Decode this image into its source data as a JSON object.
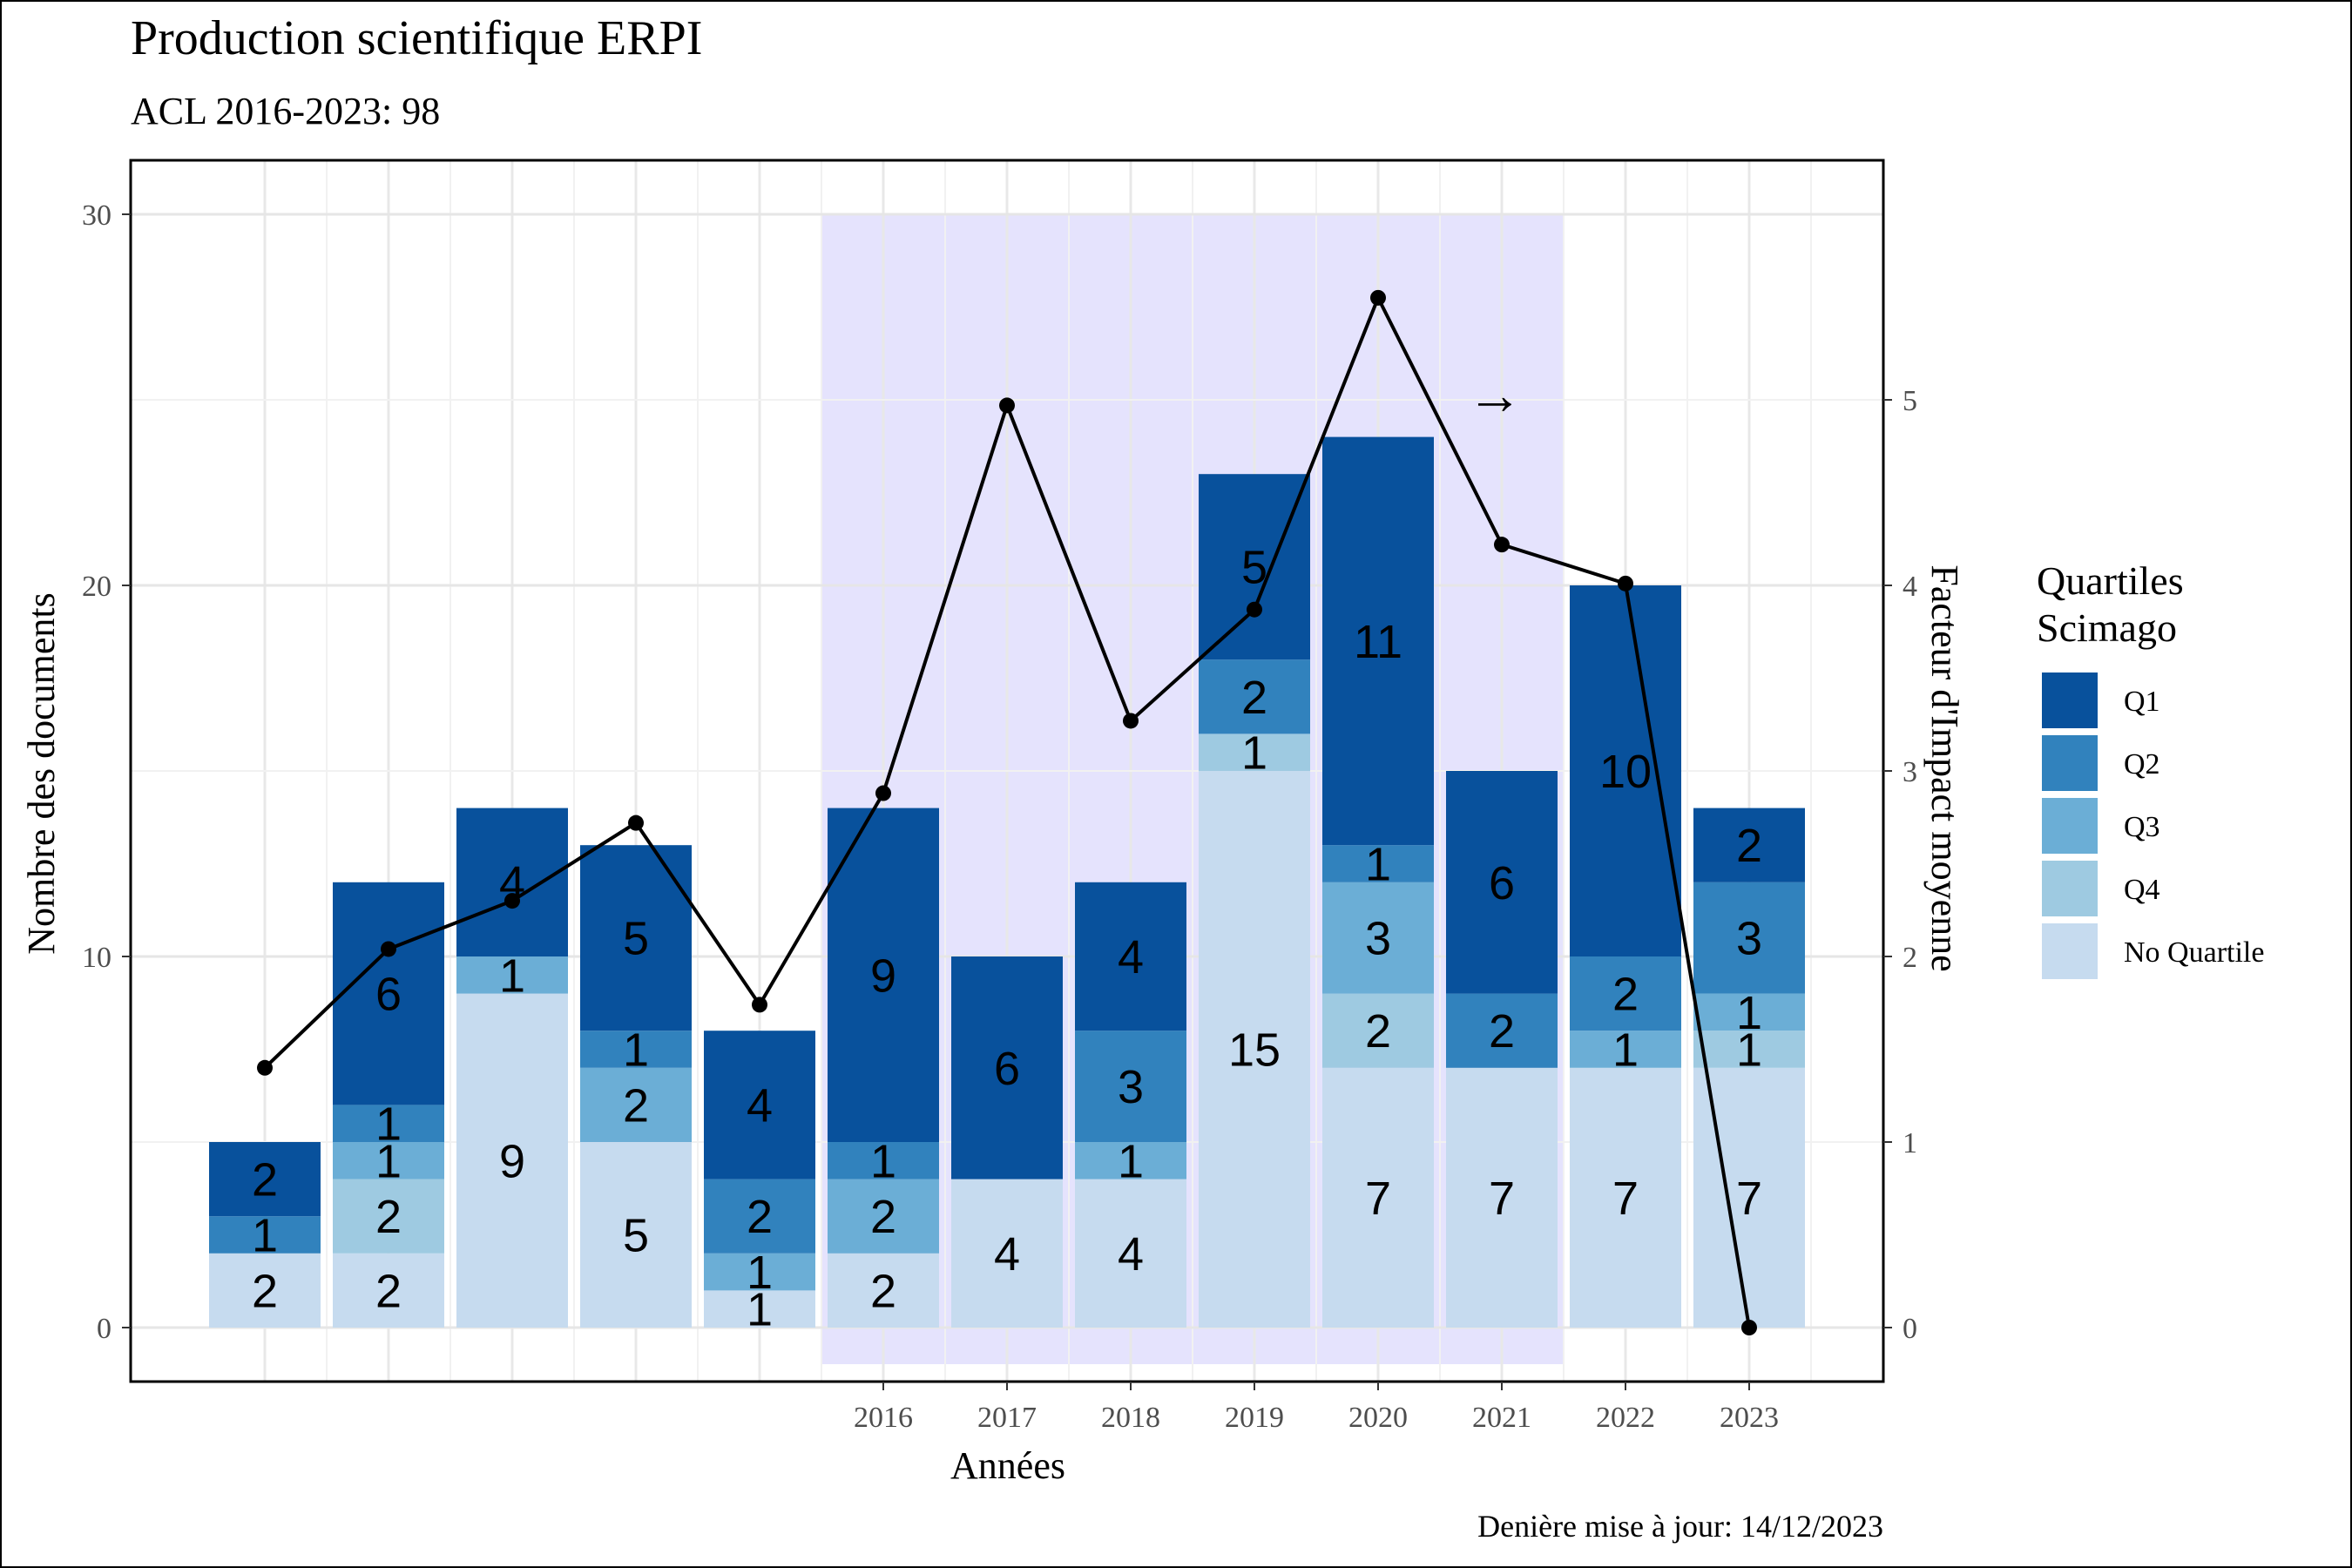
{
  "chart_data": {
    "type": "bar",
    "title": "Production scientifique ERPI",
    "subtitle": "ACL 2016-2023: 98",
    "xlabel": "Années",
    "ylabel": "Nombre des documents",
    "y2label": "Facteur d'Impact moyenne",
    "caption": "Denière mise à jour: 14/12/2023",
    "ylim": [
      0,
      30
    ],
    "y2lim": [
      0,
      6
    ],
    "yticks": [
      "0",
      "10",
      "20",
      "30"
    ],
    "y2ticks": [
      "0",
      "1",
      "2",
      "3",
      "4",
      "5"
    ],
    "categories": [
      "",
      "",
      "",
      "",
      "",
      "2016",
      "2017",
      "2018",
      "2019",
      "2020",
      "2021",
      "2022",
      "2023"
    ],
    "highlight": {
      "from_index": 5,
      "to_index": 10,
      "color": "#e5e3fd"
    },
    "grid": true,
    "legend_position": "right",
    "legend_title": [
      "Quartiles",
      "Scimago"
    ],
    "series": [
      {
        "name": "No Quartile",
        "color": "#c6dbef",
        "values": [
          2,
          2,
          9,
          5,
          1,
          2,
          4,
          4,
          15,
          7,
          7,
          7,
          7
        ]
      },
      {
        "name": "Q4",
        "color": "#9ecae1",
        "values": [
          0,
          2,
          0,
          0,
          0,
          0,
          0,
          0,
          1,
          2,
          0,
          0,
          1
        ]
      },
      {
        "name": "Q3",
        "color": "#6baed6",
        "values": [
          0,
          1,
          1,
          2,
          1,
          2,
          0,
          1,
          0,
          3,
          0,
          1,
          1
        ]
      },
      {
        "name": "Q2",
        "color": "#3182bd",
        "values": [
          1,
          1,
          0,
          1,
          2,
          1,
          0,
          3,
          2,
          1,
          2,
          2,
          3
        ]
      },
      {
        "name": "Q1",
        "color": "#08519c",
        "values": [
          2,
          6,
          4,
          5,
          4,
          9,
          6,
          4,
          5,
          11,
          6,
          10,
          2
        ]
      }
    ],
    "legend_order": [
      "Q1",
      "Q2",
      "Q3",
      "Q4",
      "No Quartile"
    ],
    "line": {
      "values": [
        1.4,
        2.04,
        2.3,
        2.72,
        1.74,
        2.88,
        4.97,
        3.27,
        3.87,
        5.55,
        4.22,
        4.01,
        0
      ]
    },
    "annotation": {
      "symbol": "→"
    }
  }
}
